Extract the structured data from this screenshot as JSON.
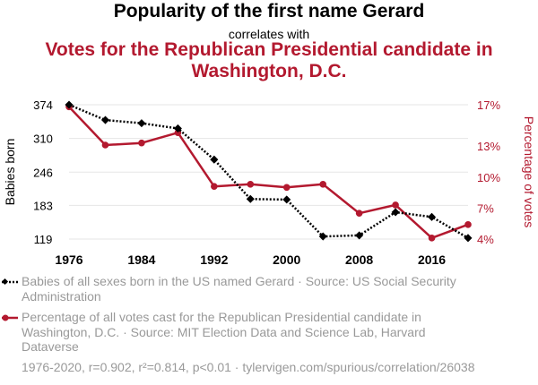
{
  "title": "Popularity of the first name Gerard",
  "connector": "correlates with",
  "subtitle": "Votes for the Republican Presidential candidate in Washington, D.C.",
  "chart_data": {
    "type": "line",
    "x": [
      1976,
      1980,
      1984,
      1988,
      1992,
      1996,
      2000,
      2004,
      2008,
      2012,
      2016,
      2020
    ],
    "xticks": [
      "1976",
      "1984",
      "1992",
      "2000",
      "2008",
      "2016"
    ],
    "xlim": [
      1976,
      2020
    ],
    "left_axis": {
      "label": "Babies born",
      "ticks": [
        "119",
        "183",
        "246",
        "310",
        "374"
      ],
      "ylim": [
        119,
        374
      ]
    },
    "right_axis": {
      "label": "Percentage of votes",
      "ticks": [
        "4%",
        "7%",
        "10%",
        "13%",
        "17%"
      ],
      "ylim": [
        4,
        17
      ]
    },
    "series": [
      {
        "name": "Babies of all sexes born in the US named Gerard · Source: US Social Security Administration",
        "axis": "left",
        "color": "#000000",
        "style": "dotted",
        "marker": "diamond",
        "values": [
          374,
          345,
          339,
          329,
          270,
          195,
          194,
          124,
          126,
          170,
          161,
          121
        ]
      },
      {
        "name": "Percentage of all votes cast for the Republican Presidential candidate in Washington, D.C. · Source: MIT Election Data and Science Lab, Harvard Dataverse",
        "axis": "right",
        "color": "#b3192f",
        "style": "solid",
        "marker": "circle",
        "values": [
          16.8,
          13.1,
          13.3,
          14.3,
          9.1,
          9.3,
          9.0,
          9.3,
          6.5,
          7.3,
          4.1,
          5.4
        ]
      }
    ],
    "grid": true,
    "legend_placement": "bottom"
  },
  "footer": "1976-2020, r=0.902, r²=0.814, p<0.01 · tylervigen.com/spurious/correlation/26038"
}
